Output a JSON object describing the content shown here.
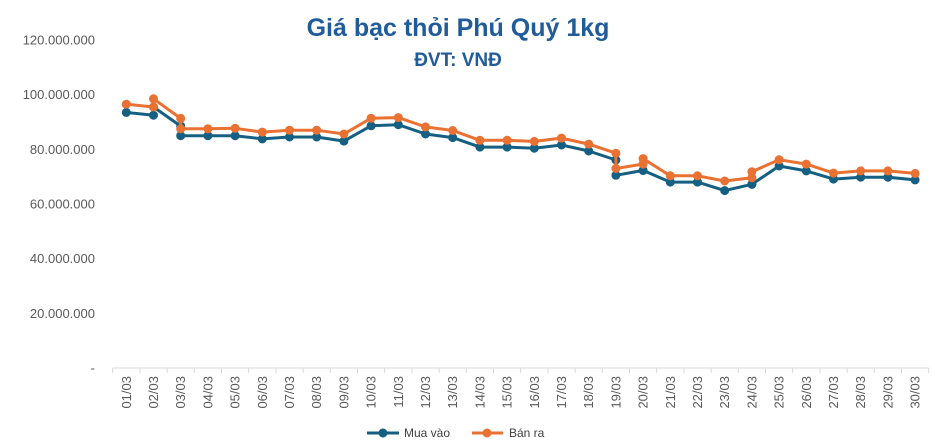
{
  "chart_data": {
    "type": "line",
    "title": "Giá bạc thỏi Phú Quý 1kg",
    "subtitle": "ĐVT: VNĐ",
    "xlabel": "",
    "ylabel": "",
    "grid": false,
    "legend": "bottom",
    "categories": [
      "01/03",
      "02/03",
      "03/03",
      "04/03",
      "05/03",
      "06/03",
      "07/03",
      "08/03",
      "09/03",
      "10/03",
      "11/03",
      "12/03",
      "13/03",
      "14/03",
      "15/03",
      "16/03",
      "17/03",
      "18/03",
      "19/03",
      "20/03",
      "21/03",
      "22/03",
      "23/03",
      "24/03",
      "25/03",
      "26/03",
      "27/03",
      "28/03",
      "29/03",
      "30/03"
    ],
    "x": [
      1,
      2,
      2,
      3,
      3,
      4,
      5,
      6,
      7,
      8,
      9,
      10,
      11,
      12,
      13,
      14,
      15,
      16,
      17,
      18,
      19,
      19,
      20,
      20,
      21,
      22,
      23,
      24,
      24,
      25,
      26,
      27,
      28,
      29,
      30
    ],
    "ylim": [
      0,
      120000000
    ],
    "yticks": [
      0,
      20000000,
      40000000,
      60000000,
      80000000,
      100000000,
      120000000
    ],
    "ytick_labels": [
      "-",
      "20.000.000",
      "40.000.000",
      "60.000.000",
      "80.000.000",
      "100.000.000",
      "120.000.000"
    ],
    "series": [
      {
        "name": "Mua vào",
        "color": "#156082",
        "values": [
          93500000,
          92500000,
          95500000,
          88500000,
          85000000,
          85000000,
          85000000,
          83800000,
          84500000,
          84500000,
          83000000,
          88600000,
          89000000,
          85600000,
          84300000,
          80800000,
          80800000,
          80400000,
          81600000,
          79400000,
          76100000,
          70500000,
          72300000,
          72300000,
          68000000,
          68000000,
          64900000,
          67200000,
          67200000,
          73900000,
          72100000,
          69100000,
          69800000,
          69800000,
          68800000
        ]
      },
      {
        "name": "Bán ra",
        "color": "#E97132",
        "values": [
          96500000,
          95500000,
          98500000,
          91300000,
          87500000,
          87500000,
          87700000,
          86300000,
          87000000,
          87000000,
          85600000,
          91400000,
          91600000,
          88200000,
          86900000,
          83300000,
          83300000,
          82900000,
          84100000,
          81900000,
          78600000,
          73000000,
          74600000,
          76600000,
          70300000,
          70300000,
          68400000,
          69600000,
          71800000,
          76200000,
          74600000,
          71300000,
          72100000,
          72100000,
          71200000
        ]
      }
    ]
  }
}
